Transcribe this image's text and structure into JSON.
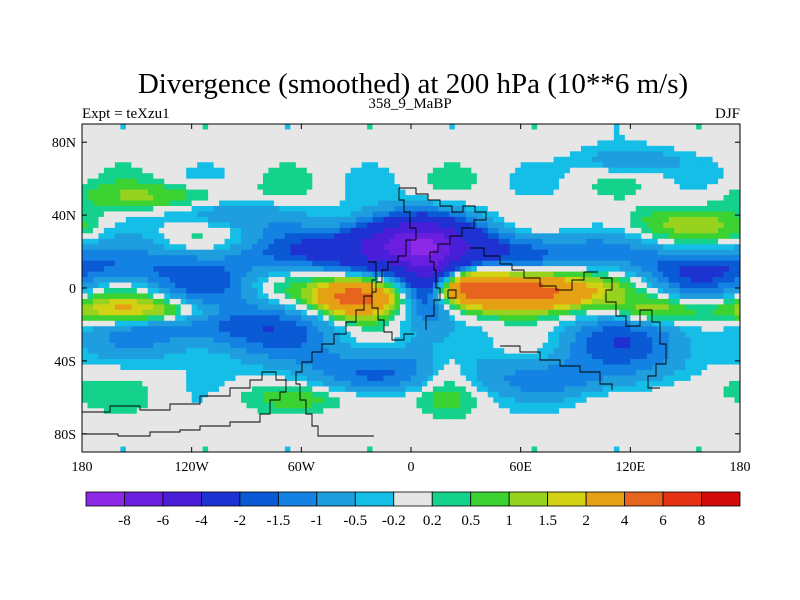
{
  "chart_data": {
    "type": "heatmap",
    "title": "Divergence (smoothed) at 200 hPa (10**6 m/s)",
    "subtitle_left": "Expt = teXzu1",
    "subtitle_center": "358_9_MaBP",
    "subtitle_right": "DJF",
    "x_ticks": [
      {
        "value": -180,
        "label": "180"
      },
      {
        "value": -120,
        "label": "120W"
      },
      {
        "value": -60,
        "label": "60W"
      },
      {
        "value": 0,
        "label": "0"
      },
      {
        "value": 60,
        "label": "60E"
      },
      {
        "value": 120,
        "label": "120E"
      },
      {
        "value": 180,
        "label": "180"
      }
    ],
    "y_ticks": [
      {
        "value": 80,
        "label": "80N"
      },
      {
        "value": 40,
        "label": "40N"
      },
      {
        "value": 0,
        "label": "0"
      },
      {
        "value": -40,
        "label": "40S"
      },
      {
        "value": -80,
        "label": "80S"
      }
    ],
    "xlim": [
      -180,
      180
    ],
    "ylim": [
      -90,
      90
    ],
    "levels": [
      -8,
      -6,
      -4,
      -2,
      -1.5,
      -1,
      -0.5,
      -0.2,
      0.2,
      0.5,
      1,
      1.5,
      2,
      4,
      6,
      8
    ],
    "level_labels": [
      "-8",
      "-6",
      "-4",
      "-2",
      "-1.5",
      "-1",
      "-0.5",
      "-0.2",
      "0.2",
      "0.5",
      "1",
      "1.5",
      "2",
      "4",
      "6",
      "8"
    ],
    "colors": [
      "#8c28e6",
      "#6a1ee0",
      "#4a1ed8",
      "#1e32d2",
      "#0a5ad6",
      "#1482e2",
      "#1e9ede",
      "#14bee6",
      "#e6e6e6",
      "#14d28c",
      "#3cd232",
      "#96d21e",
      "#d2d214",
      "#e6a014",
      "#e6641e",
      "#e63214",
      "#d20a0a"
    ],
    "field_features": [
      {
        "lon": 0,
        "lat": 25,
        "amp": -6,
        "slon": 22,
        "slat": 10
      },
      {
        "lon": 10,
        "lat": 5,
        "amp": -4,
        "slon": 10,
        "slat": 14
      },
      {
        "lon": -40,
        "lat": 20,
        "amp": -2,
        "slon": 35,
        "slat": 8
      },
      {
        "lon": 60,
        "lat": 20,
        "amp": -2,
        "slon": 30,
        "slat": 8
      },
      {
        "lon": -140,
        "lat": 10,
        "amp": -1.5,
        "slon": 40,
        "slat": 8
      },
      {
        "lon": 150,
        "lat": 12,
        "amp": -1.5,
        "slon": 30,
        "slat": 8
      },
      {
        "lon": -30,
        "lat": -5,
        "amp": 6,
        "slon": 15,
        "slat": 7
      },
      {
        "lon": 65,
        "lat": -2,
        "amp": 6,
        "slon": 22,
        "slat": 7
      },
      {
        "lon": 30,
        "lat": 0,
        "amp": 3,
        "slon": 15,
        "slat": 6
      },
      {
        "lon": -150,
        "lat": -12,
        "amp": 2.5,
        "slon": 30,
        "slat": 5
      },
      {
        "lon": 135,
        "lat": -12,
        "amp": 1.5,
        "slon": 15,
        "slat": 5
      },
      {
        "lon": -100,
        "lat": -20,
        "amp": -2,
        "slon": 40,
        "slat": 12
      },
      {
        "lon": 120,
        "lat": -30,
        "amp": -1.5,
        "slon": 35,
        "slat": 12
      },
      {
        "lon": -20,
        "lat": -45,
        "amp": -1.5,
        "slon": 30,
        "slat": 10
      },
      {
        "lon": -140,
        "lat": 50,
        "amp": 1,
        "slon": 30,
        "slat": 5
      },
      {
        "lon": 150,
        "lat": 35,
        "amp": 1,
        "slon": 30,
        "slat": 6
      },
      {
        "lon": 20,
        "lat": -45,
        "amp": 0.8,
        "slon": 10,
        "slat": 15
      },
      {
        "lon": -40,
        "lat": -60,
        "amp": 0.7,
        "slon": 40,
        "slat": 5
      },
      {
        "lon": 120,
        "lat": 70,
        "amp": -1,
        "slon": 20,
        "slat": 5
      },
      {
        "lon": -100,
        "lat": 40,
        "amp": -1,
        "slon": 25,
        "slat": 6
      },
      {
        "lon": 80,
        "lat": -50,
        "amp": -1,
        "slon": 40,
        "slat": 8
      },
      {
        "lon": 160,
        "lat": -55,
        "amp": 0.6,
        "slon": 20,
        "slat": 8
      }
    ]
  }
}
